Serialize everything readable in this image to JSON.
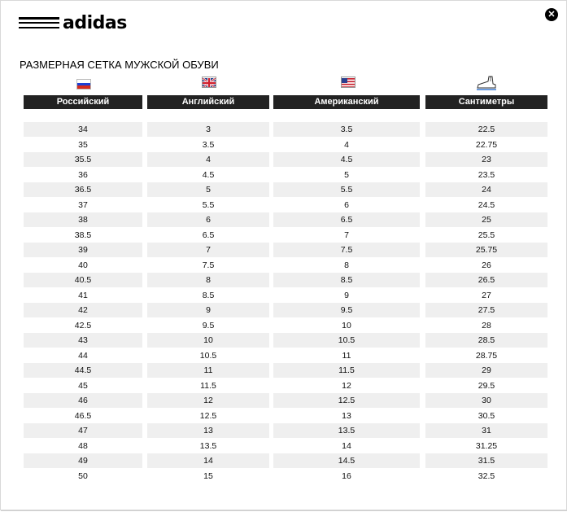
{
  "brand": {
    "name": "adidas"
  },
  "close": {
    "label": "✕"
  },
  "title": "РАЗМЕРНАЯ СЕТКА МУЖСКОЙ ОБУВИ",
  "icons": [
    "russia-flag-icon",
    "uk-flag-icon",
    "usa-flag-icon",
    "foot-ruler-icon"
  ],
  "columns": [
    "Российский",
    "Английский",
    "Американский",
    "Сантиметры"
  ],
  "rows": [
    [
      "34",
      "3",
      "3.5",
      "22.5"
    ],
    [
      "35",
      "3.5",
      "4",
      "22.75"
    ],
    [
      "35.5",
      "4",
      "4.5",
      "23"
    ],
    [
      "36",
      "4.5",
      "5",
      "23.5"
    ],
    [
      "36.5",
      "5",
      "5.5",
      "24"
    ],
    [
      "37",
      "5.5",
      "6",
      "24.5"
    ],
    [
      "38",
      "6",
      "6.5",
      "25"
    ],
    [
      "38.5",
      "6.5",
      "7",
      "25.5"
    ],
    [
      "39",
      "7",
      "7.5",
      "25.75"
    ],
    [
      "40",
      "7.5",
      "8",
      "26"
    ],
    [
      "40.5",
      "8",
      "8.5",
      "26.5"
    ],
    [
      "41",
      "8.5",
      "9",
      "27"
    ],
    [
      "42",
      "9",
      "9.5",
      "27.5"
    ],
    [
      "42.5",
      "9.5",
      "10",
      "28"
    ],
    [
      "43",
      "10",
      "10.5",
      "28.5"
    ],
    [
      "44",
      "10.5",
      "11",
      "28.75"
    ],
    [
      "44.5",
      "11",
      "11.5",
      "29"
    ],
    [
      "45",
      "11.5",
      "12",
      "29.5"
    ],
    [
      "46",
      "12",
      "12.5",
      "30"
    ],
    [
      "46.5",
      "12.5",
      "13",
      "30.5"
    ],
    [
      "47",
      "13",
      "13.5",
      "31"
    ],
    [
      "48",
      "13.5",
      "14",
      "31.25"
    ],
    [
      "49",
      "14",
      "14.5",
      "31.5"
    ],
    [
      "50",
      "15",
      "16",
      "32.5"
    ]
  ],
  "colors": {
    "header_bg": "#222222",
    "row_shade": "#efefef"
  }
}
